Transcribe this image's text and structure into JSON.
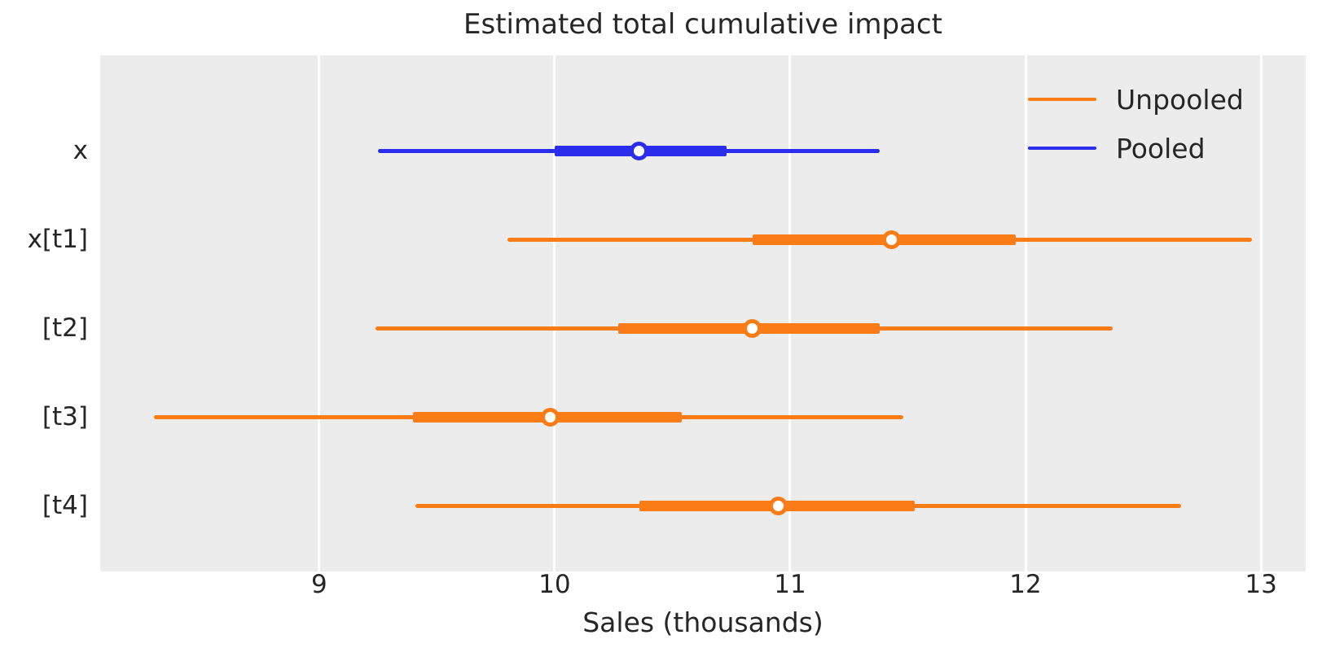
{
  "chart_data": {
    "type": "forest",
    "title": "Estimated total cumulative impact",
    "xlabel": "Sales (thousands)",
    "xlim": [
      8.07,
      13.19
    ],
    "xticks": [
      9,
      10,
      11,
      12,
      13
    ],
    "grid": "vertical-white-on-gray",
    "legend_position": "upper-right",
    "legend": [
      {
        "label": "Unpooled",
        "color": "#fa7c17"
      },
      {
        "label": "Pooled",
        "color": "#2a2eec"
      }
    ],
    "marker_fill": "#ffffff",
    "rows": [
      {
        "label": "x",
        "group": "Pooled",
        "color": "#2a2eec",
        "median": 10.36,
        "thick_interval": [
          10.0,
          10.73
        ],
        "thin_interval": [
          9.25,
          11.38
        ]
      },
      {
        "label": "x[t1]",
        "group": "Unpooled",
        "color": "#fa7c17",
        "median": 11.43,
        "thick_interval": [
          10.84,
          11.96
        ],
        "thin_interval": [
          9.8,
          12.96
        ]
      },
      {
        "label": "[t2]",
        "group": "Unpooled",
        "color": "#fa7c17",
        "median": 10.84,
        "thick_interval": [
          10.27,
          11.38
        ],
        "thin_interval": [
          9.24,
          12.37
        ]
      },
      {
        "label": "[t3]",
        "group": "Unpooled",
        "color": "#fa7c17",
        "median": 9.98,
        "thick_interval": [
          9.4,
          10.54
        ],
        "thin_interval": [
          8.3,
          11.48
        ]
      },
      {
        "label": "[t4]",
        "group": "Unpooled",
        "color": "#fa7c17",
        "median": 10.95,
        "thick_interval": [
          10.36,
          11.53
        ],
        "thin_interval": [
          9.41,
          12.66
        ]
      }
    ],
    "colors": {
      "plot_background": "#ececec",
      "figure_background": "#ffffff",
      "gridline": "#ffffff",
      "text": "#262626"
    }
  }
}
